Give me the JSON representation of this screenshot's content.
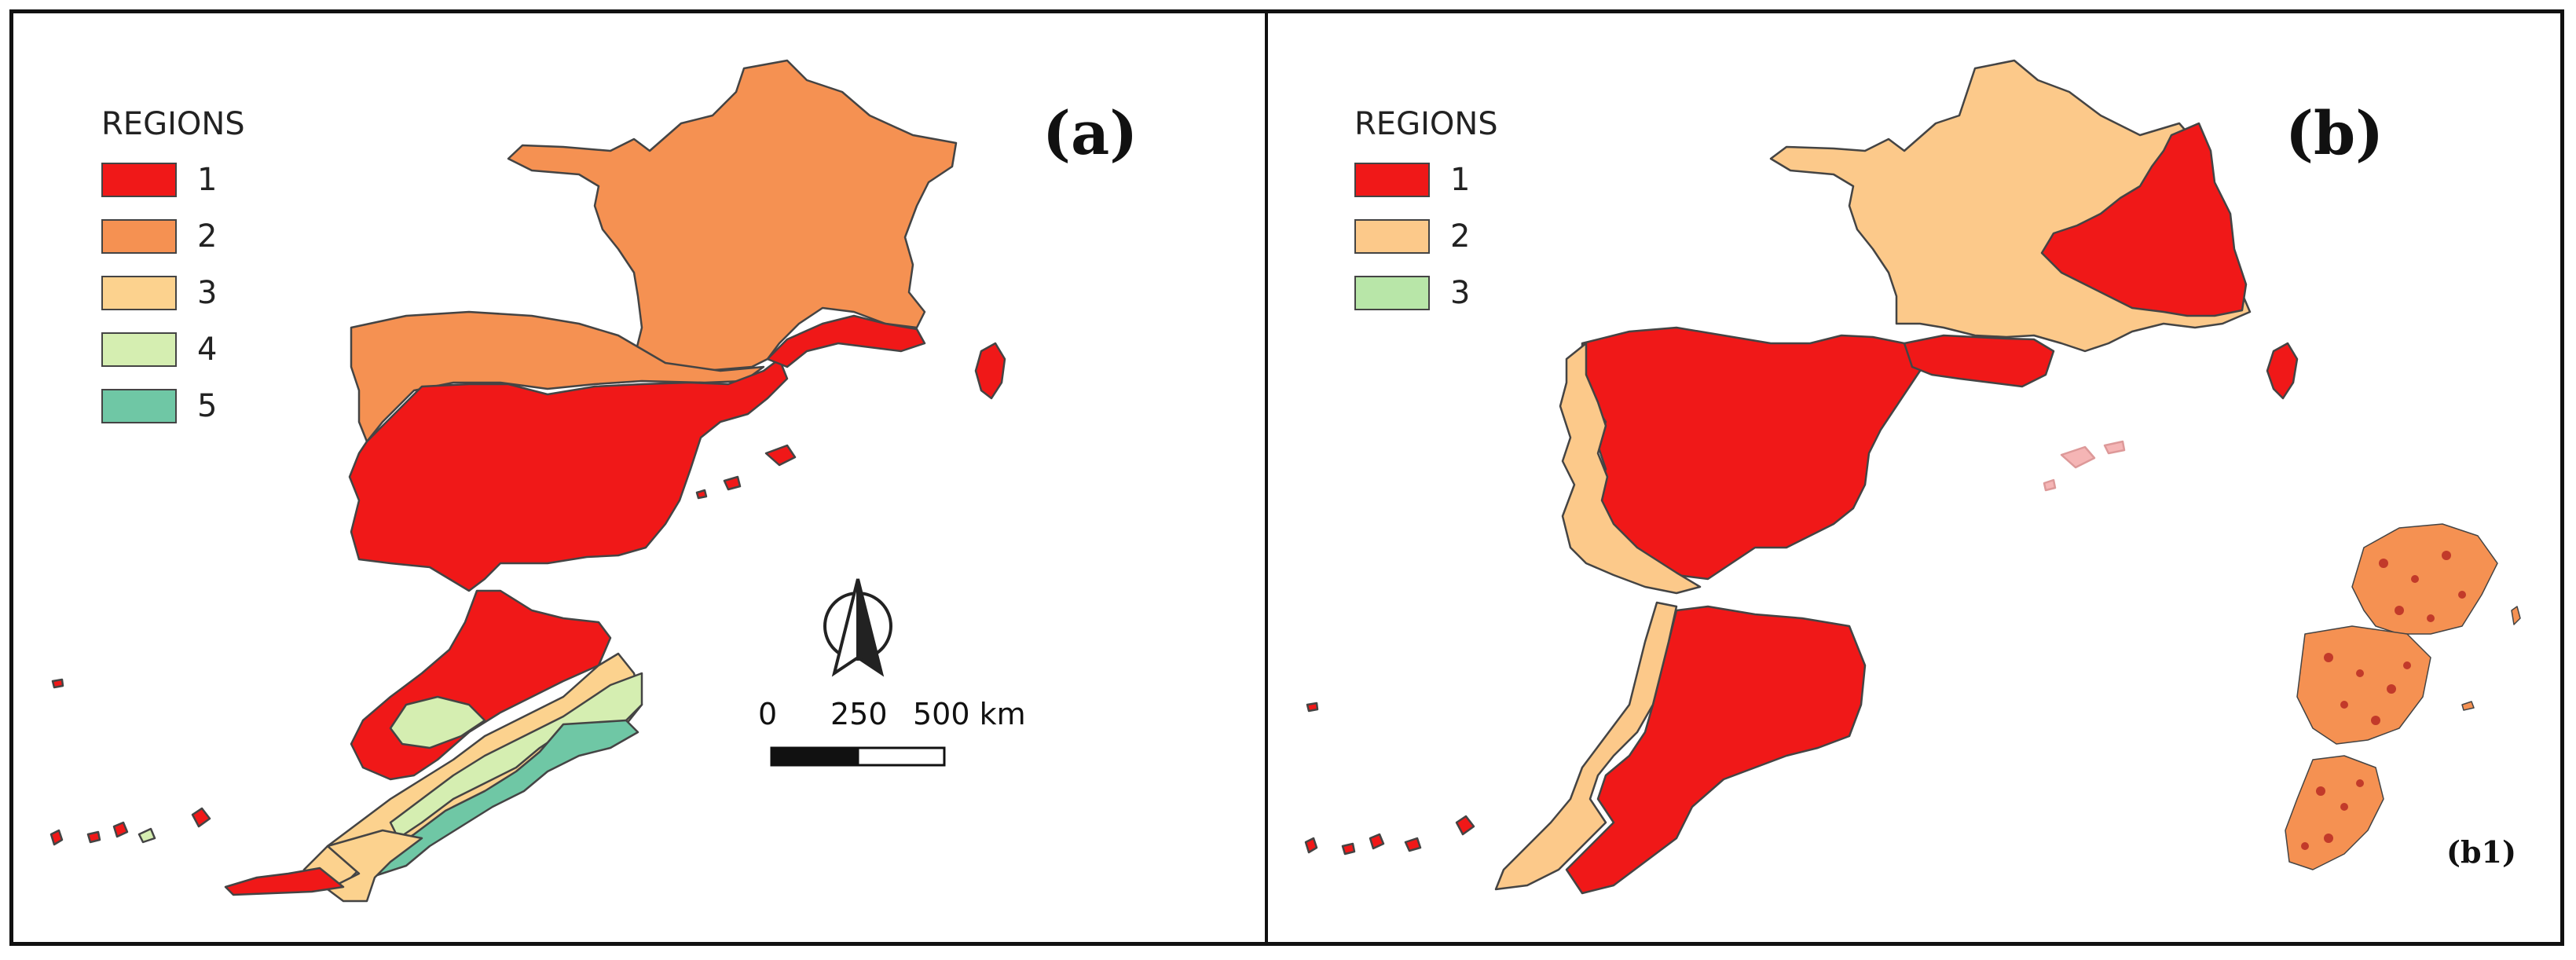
{
  "colors": {
    "region_1": "#f01818",
    "region_2": "#f59152",
    "region_3": "#fcd28e",
    "region_4": "#d5eeb1",
    "region_5": "#6fc7a5",
    "b_region_2": "#fcc98a",
    "b_region_3": "#b8e6a8",
    "outline": "#444444",
    "frame": "#111111"
  },
  "panel_a": {
    "label": "(a)",
    "legend": {
      "title": "REGIONS",
      "items": [
        {
          "label": "1",
          "color": "#f01818"
        },
        {
          "label": "2",
          "color": "#f59152"
        },
        {
          "label": "3",
          "color": "#fcd28e"
        },
        {
          "label": "4",
          "color": "#d5eeb1"
        },
        {
          "label": "5",
          "color": "#6fc7a5"
        }
      ]
    },
    "scale_bar": {
      "tick_0": "0",
      "tick_1": "250",
      "tick_2": "500 km"
    },
    "north_arrow_icon": "north-arrow-icon"
  },
  "panel_b": {
    "label": "(b)",
    "inset_label": "(b1)",
    "legend": {
      "title": "REGIONS",
      "items": [
        {
          "label": "1",
          "color": "#f01818"
        },
        {
          "label": "2",
          "color": "#fcc98a"
        },
        {
          "label": "3",
          "color": "#b8e6a8"
        }
      ]
    }
  }
}
